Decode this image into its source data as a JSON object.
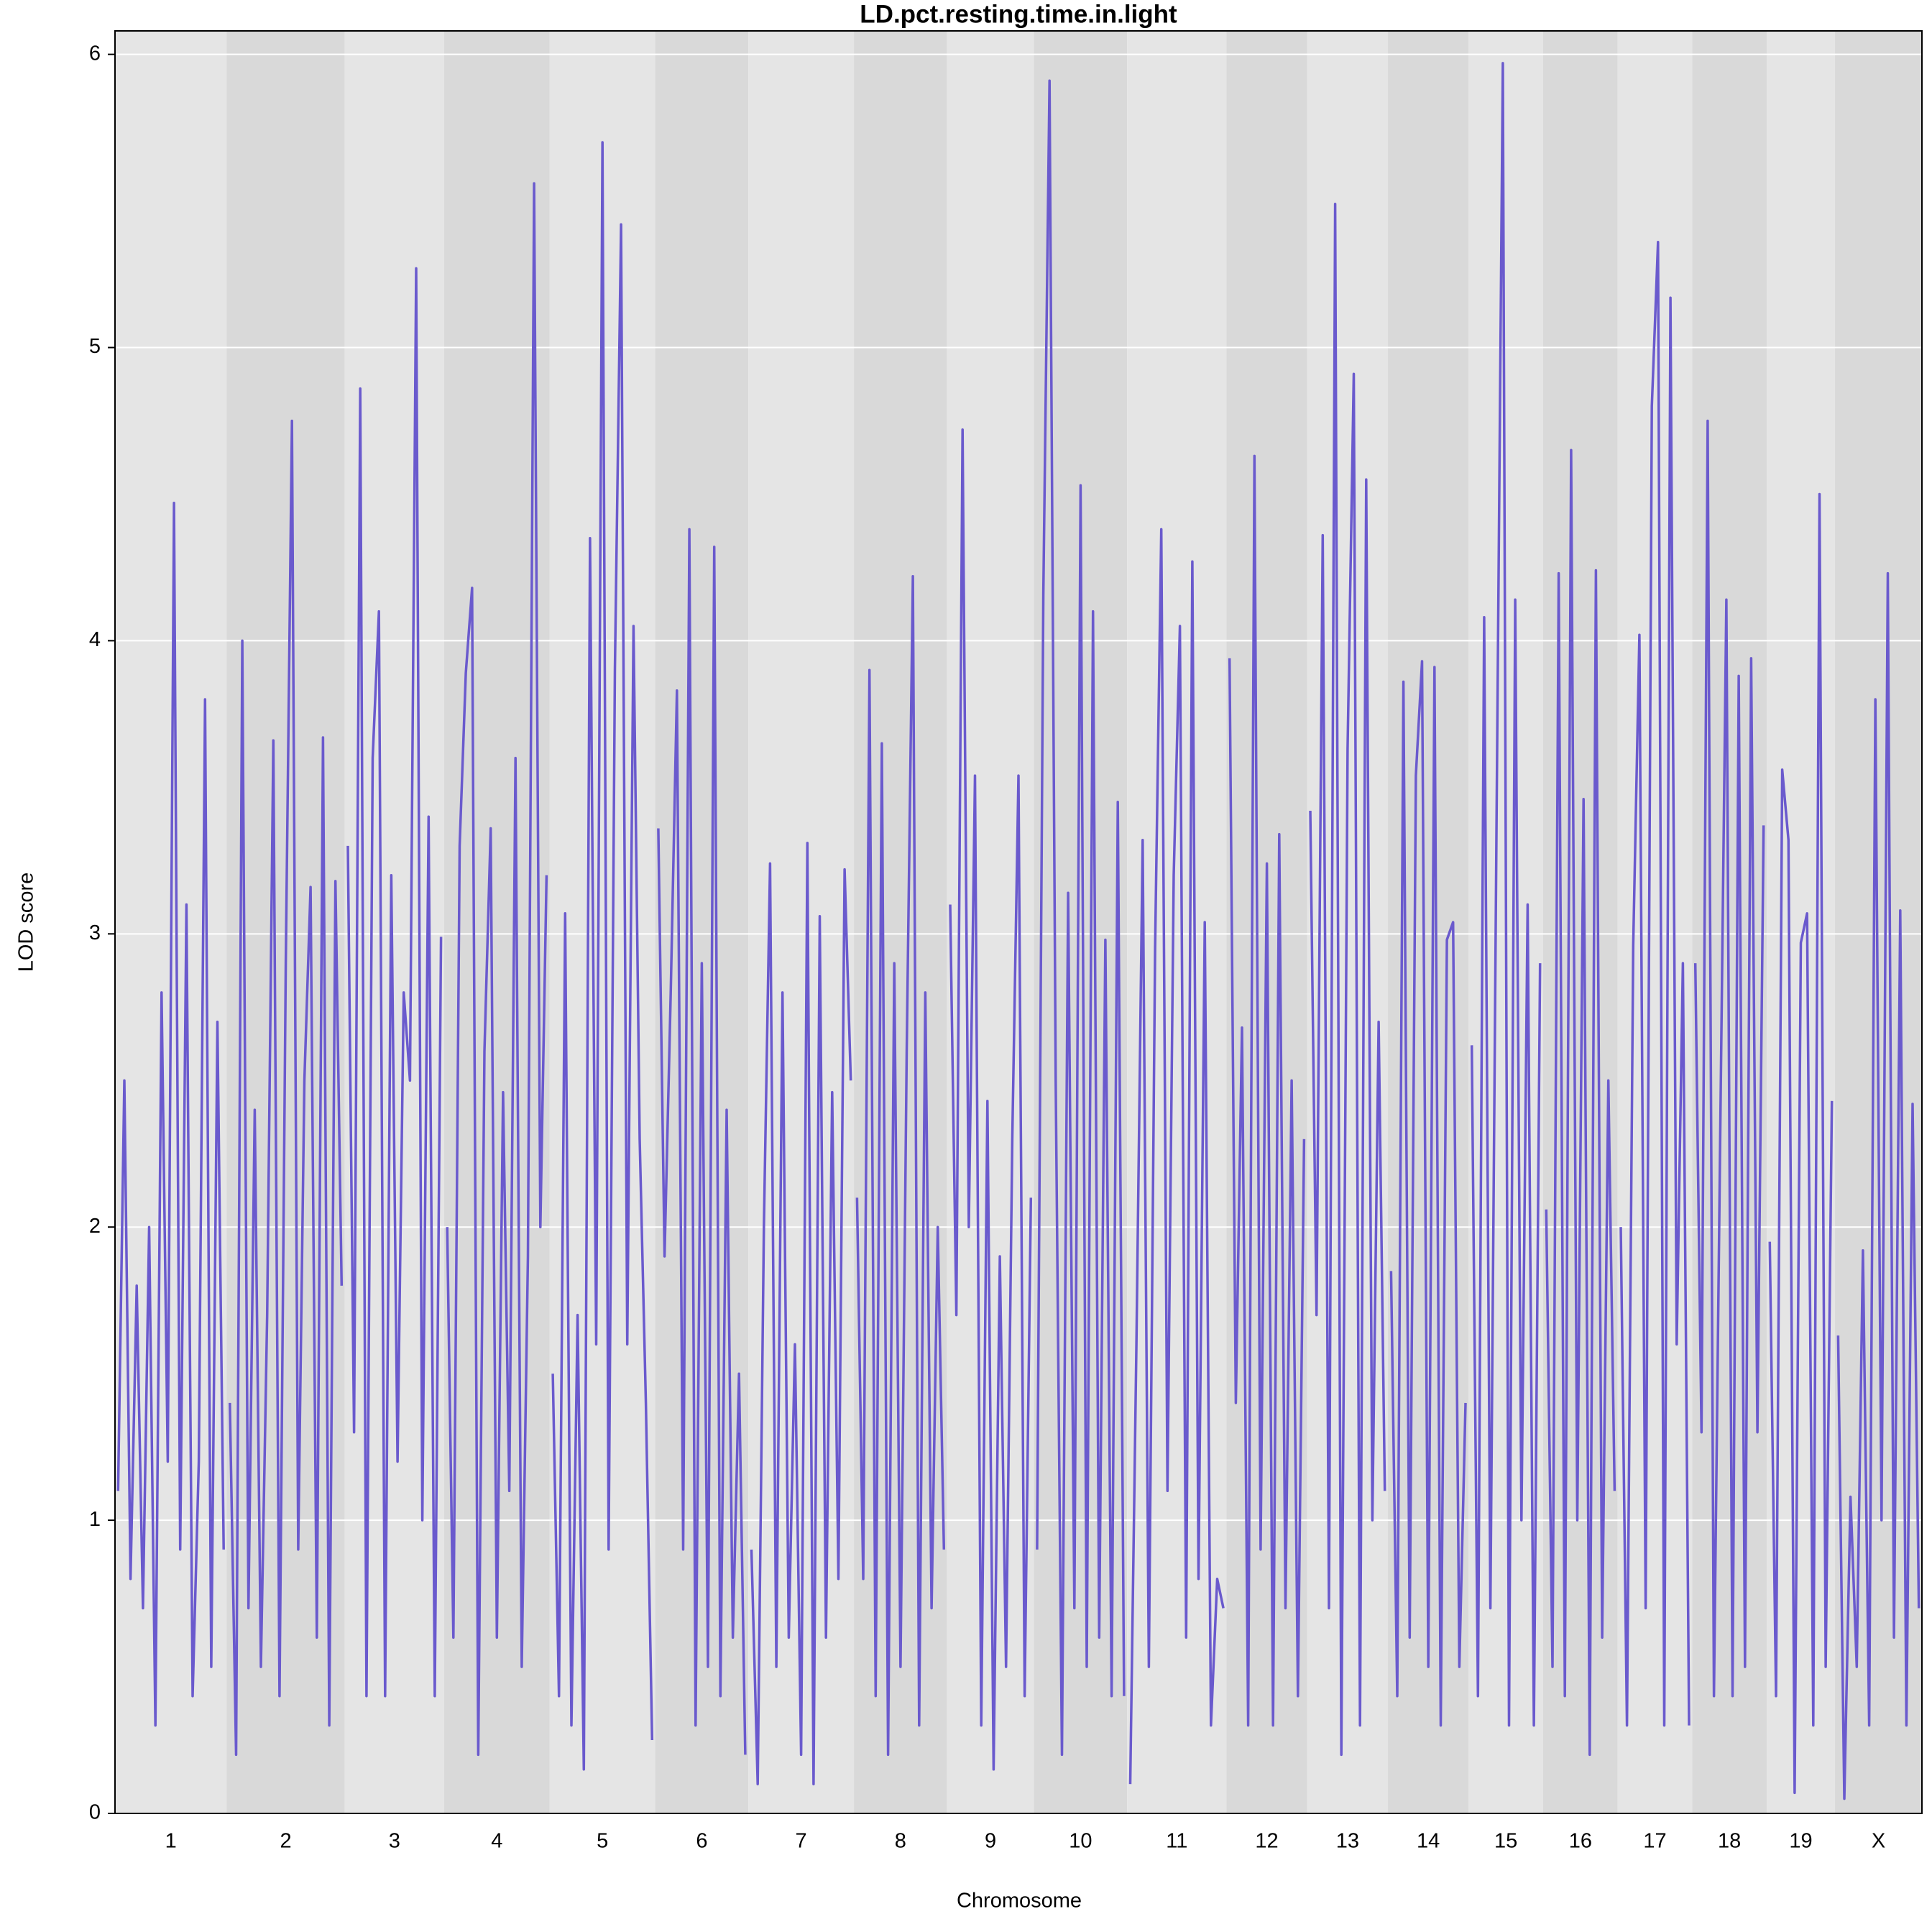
{
  "chart_data": {
    "type": "line",
    "title": "LD.pct.resting.time.in.light",
    "x_label": "Chromosome",
    "y_label": "LOD score",
    "color": "#6a5acd",
    "ylim": [
      0,
      6.08
    ],
    "yticks": [
      0,
      1,
      2,
      3,
      4,
      5,
      6
    ],
    "grid": true,
    "chromosomes": [
      {
        "name": "1",
        "values": [
          1.1,
          2.5,
          0.8,
          1.8,
          0.7,
          2.0,
          0.3,
          2.8,
          1.2,
          4.47,
          0.9,
          3.1,
          0.4,
          1.2,
          3.8,
          0.5,
          2.7,
          0.9
        ]
      },
      {
        "name": "2",
        "values": [
          1.4,
          0.2,
          4.0,
          0.7,
          2.4,
          0.5,
          1.7,
          3.66,
          0.4,
          2.9,
          4.75,
          0.9,
          2.5,
          3.16,
          0.6,
          3.67,
          0.3,
          3.18,
          1.8
        ]
      },
      {
        "name": "3",
        "values": [
          3.3,
          1.3,
          4.86,
          0.4,
          3.6,
          4.1,
          0.4,
          3.2,
          1.2,
          2.8,
          2.5,
          5.27,
          1.0,
          3.4,
          0.4,
          2.99
        ]
      },
      {
        "name": "4",
        "values": [
          2.0,
          0.6,
          3.3,
          3.89,
          4.18,
          0.2,
          2.6,
          3.36,
          0.6,
          2.46,
          1.1,
          3.6,
          0.5,
          1.9,
          5.56,
          2.0,
          3.2
        ]
      },
      {
        "name": "5",
        "values": [
          1.5,
          0.4,
          3.07,
          0.3,
          1.7,
          0.15,
          4.35,
          1.6,
          5.7,
          0.9,
          3.9,
          5.42,
          1.6,
          4.05,
          2.3,
          1.4,
          0.25
        ]
      },
      {
        "name": "6",
        "values": [
          3.36,
          1.9,
          2.8,
          3.83,
          0.9,
          4.38,
          0.3,
          2.9,
          0.5,
          4.32,
          0.4,
          2.4,
          0.6,
          1.5,
          0.2
        ]
      },
      {
        "name": "7",
        "values": [
          0.9,
          0.1,
          2.0,
          3.24,
          0.5,
          2.8,
          0.6,
          1.6,
          0.2,
          3.31,
          0.1,
          3.06,
          0.6,
          2.46,
          0.8,
          3.22,
          2.5
        ]
      },
      {
        "name": "8",
        "values": [
          2.1,
          0.8,
          3.9,
          0.4,
          3.65,
          0.2,
          2.9,
          0.5,
          2.6,
          4.22,
          0.3,
          2.8,
          0.7,
          2.0,
          0.9
        ]
      },
      {
        "name": "9",
        "values": [
          3.1,
          1.7,
          4.72,
          2.0,
          3.54,
          0.3,
          2.43,
          0.15,
          1.9,
          0.5,
          2.3,
          3.54,
          0.4,
          2.1
        ]
      },
      {
        "name": "10",
        "values": [
          0.9,
          4.16,
          5.91,
          2.5,
          0.2,
          3.14,
          0.7,
          4.53,
          0.5,
          4.1,
          0.6,
          2.98,
          0.4,
          3.45,
          0.4
        ]
      },
      {
        "name": "11",
        "values": [
          0.1,
          1.6,
          3.32,
          0.5,
          2.95,
          4.38,
          1.1,
          3.2,
          4.05,
          0.6,
          4.27,
          0.8,
          3.04,
          0.3,
          0.8,
          0.7
        ]
      },
      {
        "name": "12",
        "values": [
          3.94,
          1.4,
          2.68,
          0.3,
          4.63,
          0.9,
          3.24,
          0.3,
          3.34,
          0.7,
          2.5,
          0.4,
          2.3
        ]
      },
      {
        "name": "13",
        "values": [
          3.42,
          1.7,
          4.36,
          0.7,
          5.49,
          0.2,
          3.63,
          4.91,
          0.3,
          4.55,
          1.0,
          2.7,
          1.1
        ]
      },
      {
        "name": "14",
        "values": [
          1.85,
          0.4,
          3.86,
          0.6,
          3.54,
          3.93,
          0.5,
          3.91,
          0.3,
          2.98,
          3.04,
          0.5,
          1.4
        ]
      },
      {
        "name": "15",
        "values": [
          2.62,
          0.4,
          4.08,
          0.7,
          3.4,
          5.97,
          0.3,
          4.14,
          1.0,
          3.1,
          0.3,
          2.9
        ]
      },
      {
        "name": "16",
        "values": [
          2.06,
          0.5,
          4.23,
          0.4,
          4.65,
          1.0,
          3.46,
          0.2,
          4.24,
          0.6,
          2.5,
          1.1
        ]
      },
      {
        "name": "17",
        "values": [
          2.0,
          0.3,
          2.96,
          4.02,
          0.7,
          4.8,
          5.36,
          0.3,
          5.17,
          1.6,
          2.9,
          0.3
        ]
      },
      {
        "name": "18",
        "values": [
          2.9,
          1.3,
          4.75,
          0.4,
          2.28,
          4.14,
          0.4,
          3.88,
          0.5,
          3.94,
          1.3,
          3.37
        ]
      },
      {
        "name": "19",
        "values": [
          1.95,
          0.4,
          3.56,
          3.32,
          0.07,
          2.97,
          3.07,
          0.3,
          4.5,
          0.5,
          2.43
        ]
      },
      {
        "name": "X",
        "values": [
          1.63,
          0.05,
          1.08,
          0.5,
          1.92,
          0.3,
          3.8,
          1.0,
          4.23,
          0.6,
          3.08,
          0.3,
          2.42,
          0.7
        ]
      }
    ]
  }
}
